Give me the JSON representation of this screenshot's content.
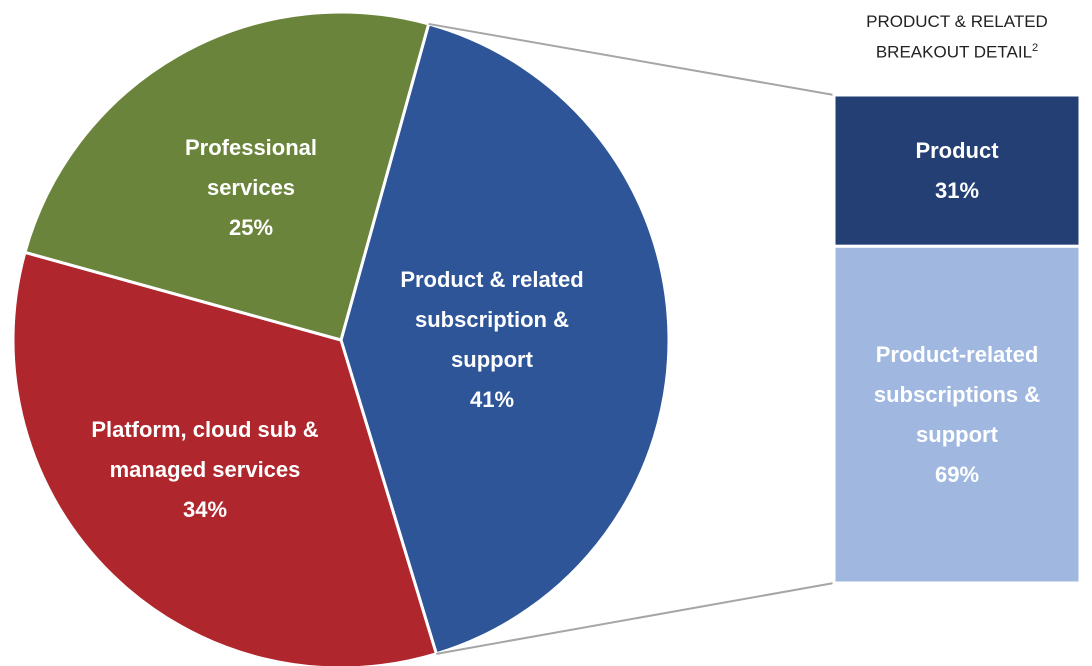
{
  "chart_data": {
    "type": "pie",
    "categories": [
      "Product & related subscription & support",
      "Platform, cloud sub & managed services",
      "Professional services"
    ],
    "values": [
      41,
      34,
      25
    ],
    "value_labels": [
      "41%",
      "34%",
      "25%"
    ],
    "colors": [
      "#2e5597",
      "#b0262d",
      "#6b843b"
    ],
    "breakout": {
      "title": "PRODUCT & RELATED BREAKOUT DETAIL",
      "title_note": "2",
      "categories": [
        "Product",
        "Product-related subscriptions & support"
      ],
      "values": [
        31,
        69
      ],
      "value_labels": [
        "31%",
        "69%"
      ],
      "colors": [
        "#243f73",
        "#a0b8e0"
      ]
    }
  }
}
